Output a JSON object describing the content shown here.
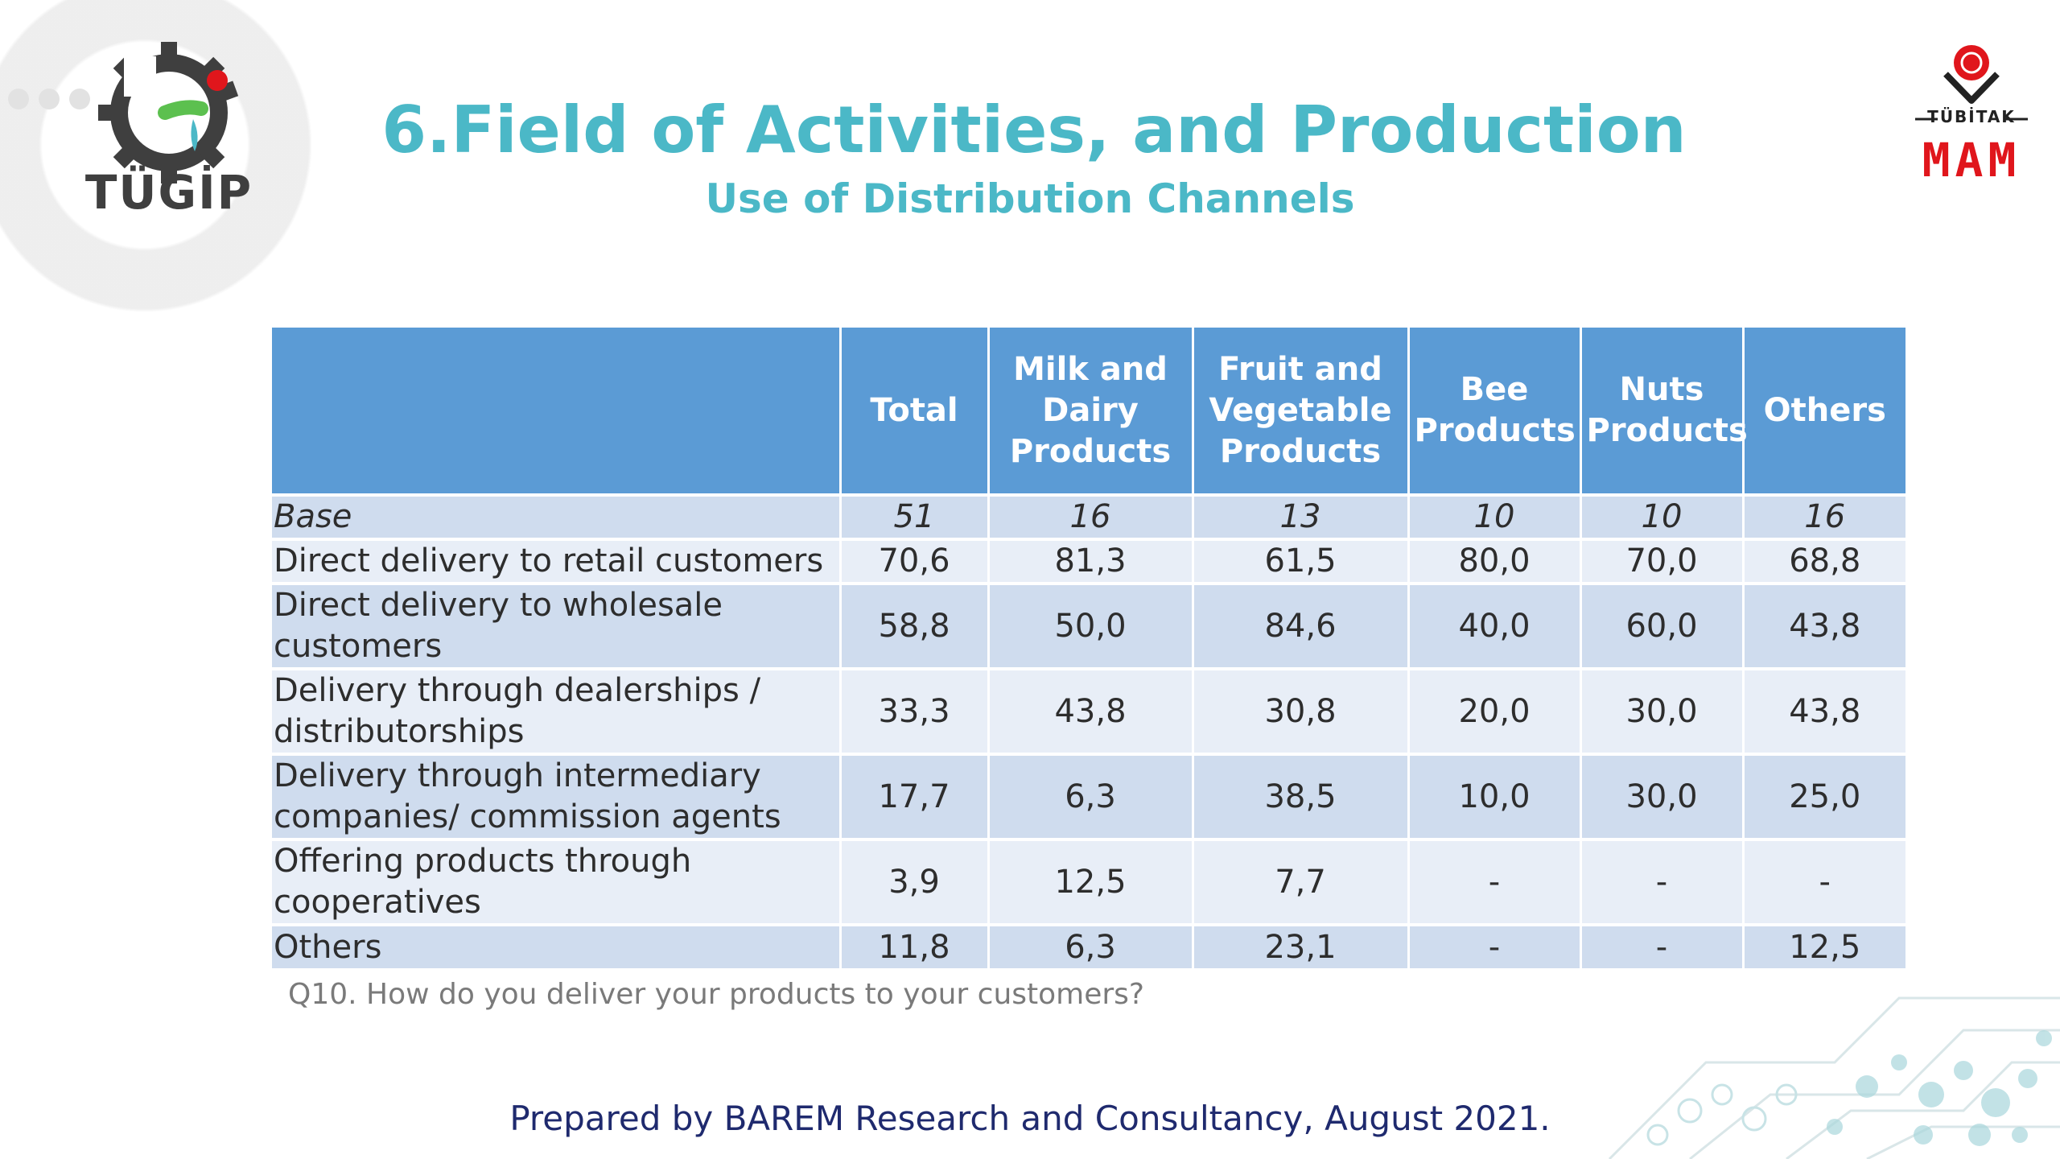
{
  "header": {
    "title": "6.Field of Activities, and Production",
    "subtitle": "Use of Distribution Channels"
  },
  "logos": {
    "left": {
      "text": "TÜGİP",
      "icon": "gear-logo-icon",
      "colors": [
        "#3f3f3f",
        "#5cc04f",
        "#e0161c",
        "#4bb8c7"
      ]
    },
    "right": {
      "small_text": "TÜBİTAK",
      "big_text": "MAM",
      "icon": "tubitak-emblem-icon",
      "color": "#e0161c"
    }
  },
  "table": {
    "columns": [
      "",
      "Total",
      "Milk and Dairy Products",
      "Fruit and Vegetable Products",
      "Bee Products",
      "Nuts Products",
      "Others"
    ],
    "rows": [
      {
        "label": "Base",
        "values": [
          "51",
          "16",
          "13",
          "10",
          "10",
          "16"
        ]
      },
      {
        "label": "Direct delivery to retail customers",
        "values": [
          "70,6",
          "81,3",
          "61,5",
          "80,0",
          "70,0",
          "68,8"
        ]
      },
      {
        "label": "Direct delivery to wholesale customers",
        "values": [
          "58,8",
          "50,0",
          "84,6",
          "40,0",
          "60,0",
          "43,8"
        ]
      },
      {
        "label": "Delivery through dealerships / distributorships",
        "values": [
          "33,3",
          "43,8",
          "30,8",
          "20,0",
          "30,0",
          "43,8"
        ]
      },
      {
        "label": "Delivery through intermediary companies/ commission agents",
        "values": [
          "17,7",
          "6,3",
          "38,5",
          "10,0",
          "30,0",
          "25,0"
        ]
      },
      {
        "label": "Offering products through cooperatives",
        "values": [
          "3,9",
          "12,5",
          "7,7",
          "-",
          "-",
          "-"
        ]
      },
      {
        "label": "Others",
        "values": [
          "11,8",
          "6,3",
          "23,1",
          "-",
          "-",
          "12,5"
        ]
      }
    ],
    "header_color": "#5b9bd5",
    "row_colors": [
      "#cfdcee",
      "#e8eef7"
    ]
  },
  "question": "Q10. How do you deliver your products to your customers?",
  "footer": "Prepared by BAREM Research and Consultancy, August 2021."
}
